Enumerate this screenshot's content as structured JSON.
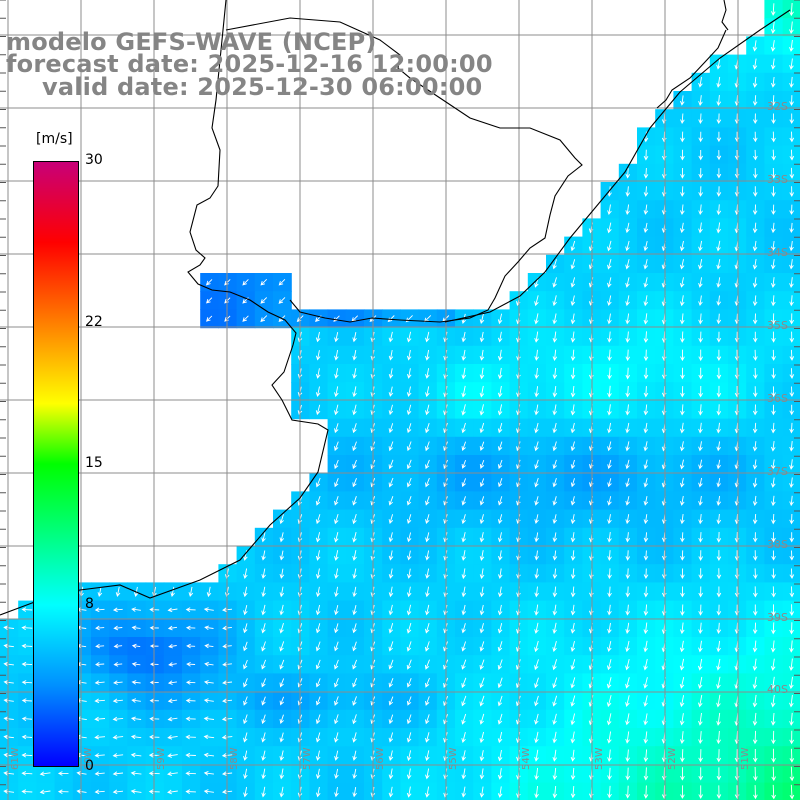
{
  "title": {
    "model": "modelo GEFS-WAVE (NCEP)",
    "forecast": "forecast date: 2025-12-16 12:00:00",
    "valid": "valid date: 2025-12-30 06:00:00"
  },
  "colorbar": {
    "unit": "[m/s]",
    "range": [
      0,
      30
    ],
    "ticks": [
      "0",
      "8",
      "15",
      "22",
      "30"
    ],
    "tick_values": [
      0,
      8,
      15,
      22,
      30
    ],
    "stops": [
      {
        "value": 0,
        "color": "#0000ff"
      },
      {
        "value": 4,
        "color": "#0090ff"
      },
      {
        "value": 8,
        "color": "#00ffff"
      },
      {
        "value": 15,
        "color": "#00ff00"
      },
      {
        "value": 18,
        "color": "#ffff00"
      },
      {
        "value": 22,
        "color": "#ff7f00"
      },
      {
        "value": 26,
        "color": "#ff0000"
      },
      {
        "value": 30,
        "color": "#c80078"
      }
    ]
  },
  "lat_labels": [
    "32S",
    "33S",
    "34S",
    "35S",
    "36S",
    "37S",
    "38S",
    "39S",
    "40S"
  ],
  "lon_labels": [
    "61W",
    "60W",
    "59W",
    "58W",
    "57W",
    "56W",
    "55W",
    "54W",
    "53W",
    "52W",
    "51W"
  ],
  "colors": {
    "grid": "#8c8c8c",
    "coast": "#000000",
    "land": "#ffffff",
    "arrow": "#ffffff",
    "label": "#858585"
  },
  "field": {
    "variable": "wind speed and direction",
    "units": "m/s"
  }
}
